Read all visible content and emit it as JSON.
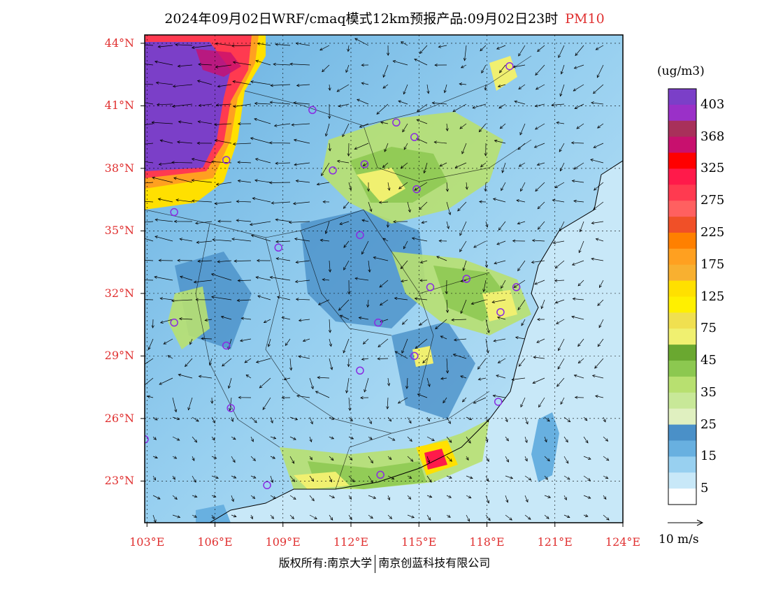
{
  "title": {
    "main": "2024年09月02日WRF/cmaq模式12km预报产品:09月02日23时",
    "pollutant": "PM10"
  },
  "axes": {
    "lat_labels": [
      "44°N",
      "41°N",
      "38°N",
      "35°N",
      "32°N",
      "29°N",
      "26°N",
      "23°N"
    ],
    "lon_labels": [
      "103°E",
      "106°E",
      "109°E",
      "112°E",
      "115°E",
      "118°E",
      "121°E",
      "124°E"
    ],
    "lat_values": [
      44,
      41,
      38,
      35,
      32,
      29,
      26,
      23
    ],
    "lon_values": [
      103,
      106,
      109,
      112,
      115,
      118,
      121,
      124
    ],
    "lat_range": [
      21,
      44.4
    ],
    "lon_range": [
      102.9,
      124
    ]
  },
  "colorbar": {
    "unit": "(ug/m3)",
    "labels": [
      "403",
      "368",
      "325",
      "275",
      "225",
      "175",
      "125",
      "75",
      "45",
      "35",
      "25",
      "15",
      "5"
    ],
    "colors_top_to_bottom": [
      "#7b3fc8",
      "#9a30c8",
      "#a8305a",
      "#c8106e",
      "#ff0000",
      "#ff1a4a",
      "#ff3a50",
      "#ff6060",
      "#f05028",
      "#ff8000",
      "#ffa020",
      "#f8b030",
      "#ffe000",
      "#fff000",
      "#f0e050",
      "#f0f070",
      "#6aa830",
      "#8cc850",
      "#b8e070",
      "#c8e898",
      "#e0f0c0",
      "#4a90c8",
      "#68b0e0",
      "#98d0f0",
      "#c8e8f8",
      "#ffffff"
    ]
  },
  "wind_reference": {
    "label": "10 m/s"
  },
  "footer": {
    "left": "版权所有:南京大学",
    "right": "南京创蓝科技有限公司"
  },
  "stations": [
    [
      119.0,
      42.9
    ],
    [
      110.3,
      40.8
    ],
    [
      114.0,
      40.2
    ],
    [
      114.8,
      39.5
    ],
    [
      106.5,
      38.4
    ],
    [
      111.2,
      37.9
    ],
    [
      112.6,
      38.2
    ],
    [
      114.9,
      37.0
    ],
    [
      104.2,
      35.9
    ],
    [
      112.4,
      34.8
    ],
    [
      108.8,
      34.2
    ],
    [
      115.5,
      32.3
    ],
    [
      117.1,
      32.7
    ],
    [
      119.3,
      32.3
    ],
    [
      104.2,
      30.6
    ],
    [
      118.6,
      31.1
    ],
    [
      113.2,
      30.6
    ],
    [
      106.5,
      29.5
    ],
    [
      114.8,
      29.0
    ],
    [
      112.4,
      28.3
    ],
    [
      106.7,
      26.5
    ],
    [
      118.5,
      26.8
    ],
    [
      102.9,
      25.0
    ],
    [
      108.3,
      22.8
    ],
    [
      113.3,
      23.3
    ]
  ],
  "colors": {
    "label_red": "#e03030",
    "station_ring": "#8a2be2"
  }
}
